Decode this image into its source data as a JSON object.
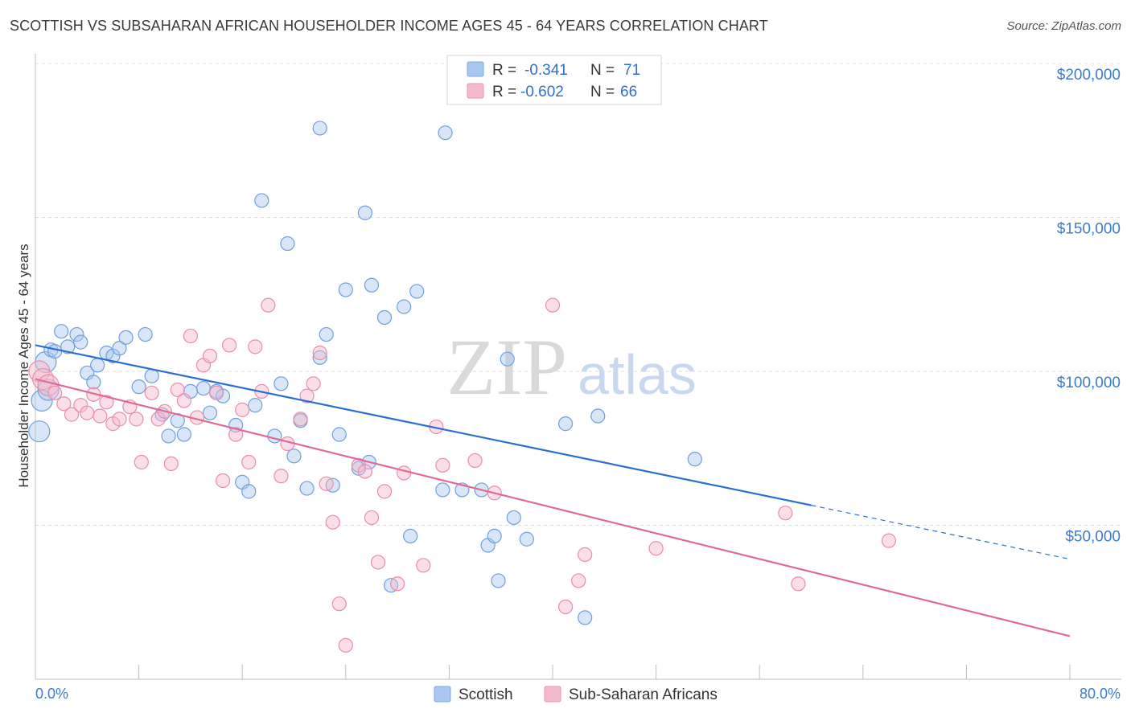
{
  "header": {
    "title": "SCOTTISH VS SUBSAHARAN AFRICAN HOUSEHOLDER INCOME AGES 45 - 64 YEARS CORRELATION CHART",
    "source": "Source: ZipAtlas.com"
  },
  "watermark": {
    "part1": "ZIP",
    "part2": "atlas"
  },
  "legend": {
    "rows": [
      {
        "r_label": "R =",
        "r_value": "-0.341",
        "n_label": "N =",
        "n_value": "71",
        "color": "#a9c8f0"
      },
      {
        "r_label": "R =",
        "r_value": "-0.602",
        "n_label": "N =",
        "n_value": "66",
        "color": "#f6b8cb"
      }
    ]
  },
  "bottom_legend": {
    "items": [
      {
        "label": "Scottish",
        "color": "#a9c8f0"
      },
      {
        "label": "Sub-Saharan Africans",
        "color": "#f6b8cb"
      }
    ]
  },
  "chart_data": {
    "type": "scatter",
    "title": "SCOTTISH VS SUBSAHARAN AFRICAN HOUSEHOLDER INCOME AGES 45 - 64 YEARS CORRELATION CHART",
    "ylabel": "Householder Income Ages 45 - 64 years",
    "xlabel": "",
    "xlim": [
      0,
      80
    ],
    "ylim": [
      0,
      200000
    ],
    "x_tick_labels": [
      "0.0%",
      "80.0%"
    ],
    "y_tick_labels": [
      "$50,000",
      "$100,000",
      "$150,000",
      "$200,000"
    ],
    "y_tick_values": [
      50000,
      100000,
      150000,
      200000
    ],
    "grid": true,
    "legend_position": "top-center",
    "series": [
      {
        "name": "Scottish",
        "color": "#7fb0e8",
        "line_color": "#2a6fd0",
        "trend": {
          "x0": 0,
          "y0": 108500,
          "x1": 60,
          "y1": 56500,
          "dash_to_x": 80,
          "dash_to_y": 39000
        },
        "points": [
          [
            0.3,
            80500
          ],
          [
            0.5,
            90500
          ],
          [
            0.8,
            103000
          ],
          [
            1.0,
            94000
          ],
          [
            1.2,
            107000
          ],
          [
            1.5,
            106500
          ],
          [
            2.0,
            113000
          ],
          [
            2.5,
            108000
          ],
          [
            3.2,
            112000
          ],
          [
            3.5,
            109500
          ],
          [
            4.0,
            99500
          ],
          [
            4.5,
            96500
          ],
          [
            4.8,
            102000
          ],
          [
            5.5,
            106000
          ],
          [
            6.0,
            105000
          ],
          [
            6.5,
            107500
          ],
          [
            7.0,
            111000
          ],
          [
            8.0,
            95000
          ],
          [
            8.5,
            112000
          ],
          [
            9.0,
            98500
          ],
          [
            9.8,
            86000
          ],
          [
            10.3,
            79000
          ],
          [
            11.0,
            84000
          ],
          [
            11.5,
            79500
          ],
          [
            12.0,
            93500
          ],
          [
            13.0,
            94500
          ],
          [
            13.5,
            86500
          ],
          [
            14.0,
            93500
          ],
          [
            14.5,
            92000
          ],
          [
            15.5,
            82500
          ],
          [
            16.0,
            64000
          ],
          [
            16.5,
            61000
          ],
          [
            17.0,
            89000
          ],
          [
            17.5,
            155500
          ],
          [
            18.5,
            79000
          ],
          [
            19.0,
            96000
          ],
          [
            19.5,
            141500
          ],
          [
            20.0,
            72500
          ],
          [
            20.5,
            84000
          ],
          [
            21.0,
            62000
          ],
          [
            22.0,
            104500
          ],
          [
            22.0,
            179000
          ],
          [
            22.5,
            112000
          ],
          [
            23.0,
            63000
          ],
          [
            23.5,
            79500
          ],
          [
            24.0,
            126500
          ],
          [
            25.0,
            68500
          ],
          [
            25.5,
            151500
          ],
          [
            25.8,
            70500
          ],
          [
            26.0,
            128000
          ],
          [
            27.0,
            117500
          ],
          [
            27.5,
            30500
          ],
          [
            28.5,
            121000
          ],
          [
            29.0,
            46500
          ],
          [
            29.5,
            126000
          ],
          [
            31.5,
            61500
          ],
          [
            31.7,
            177500
          ],
          [
            33.0,
            61500
          ],
          [
            34.5,
            61500
          ],
          [
            35.0,
            43500
          ],
          [
            35.5,
            46500
          ],
          [
            35.8,
            32000
          ],
          [
            36.5,
            104000
          ],
          [
            37.0,
            52500
          ],
          [
            38.0,
            45500
          ],
          [
            41.0,
            83000
          ],
          [
            42.5,
            20000
          ],
          [
            43.5,
            85500
          ],
          [
            51.0,
            71500
          ]
        ]
      },
      {
        "name": "Sub-Saharan Africans",
        "color": "#f4a9bf",
        "line_color": "#e06a95",
        "trend": {
          "x0": 0,
          "y0": 97500,
          "x1": 80,
          "y1": 14000
        },
        "points": [
          [
            0.3,
            100000
          ],
          [
            0.6,
            97500
          ],
          [
            1.0,
            95500
          ],
          [
            1.5,
            93000
          ],
          [
            2.2,
            89500
          ],
          [
            2.8,
            86000
          ],
          [
            3.5,
            89000
          ],
          [
            4.0,
            86500
          ],
          [
            4.5,
            92500
          ],
          [
            5.0,
            85500
          ],
          [
            5.5,
            90000
          ],
          [
            6.0,
            83000
          ],
          [
            6.5,
            84500
          ],
          [
            7.3,
            88500
          ],
          [
            7.8,
            84500
          ],
          [
            8.2,
            70500
          ],
          [
            9.0,
            93000
          ],
          [
            9.5,
            84500
          ],
          [
            10.0,
            87000
          ],
          [
            10.5,
            70000
          ],
          [
            11.0,
            94000
          ],
          [
            11.5,
            90500
          ],
          [
            12.0,
            111500
          ],
          [
            12.5,
            85000
          ],
          [
            13.0,
            102000
          ],
          [
            13.5,
            105000
          ],
          [
            14.0,
            93000
          ],
          [
            14.5,
            64500
          ],
          [
            15.0,
            108500
          ],
          [
            15.5,
            79500
          ],
          [
            16.0,
            87500
          ],
          [
            16.5,
            70500
          ],
          [
            17.0,
            108000
          ],
          [
            17.5,
            93500
          ],
          [
            18.0,
            121500
          ],
          [
            19.0,
            66000
          ],
          [
            19.5,
            76500
          ],
          [
            20.5,
            84500
          ],
          [
            21.0,
            92000
          ],
          [
            21.5,
            96000
          ],
          [
            22.0,
            106000
          ],
          [
            22.5,
            63500
          ],
          [
            23.0,
            51000
          ],
          [
            23.5,
            24500
          ],
          [
            24.0,
            11000
          ],
          [
            25.0,
            69500
          ],
          [
            25.5,
            67500
          ],
          [
            26.0,
            52500
          ],
          [
            26.5,
            38000
          ],
          [
            27.0,
            61000
          ],
          [
            28.0,
            31000
          ],
          [
            28.5,
            67000
          ],
          [
            30.0,
            37000
          ],
          [
            31.0,
            82000
          ],
          [
            31.5,
            69500
          ],
          [
            34.0,
            71000
          ],
          [
            35.5,
            60500
          ],
          [
            40.0,
            121500
          ],
          [
            41.0,
            23500
          ],
          [
            42.0,
            32000
          ],
          [
            42.5,
            40500
          ],
          [
            48.0,
            42500
          ],
          [
            58.0,
            54000
          ],
          [
            59.0,
            31000
          ],
          [
            66.0,
            45000
          ]
        ]
      }
    ]
  }
}
